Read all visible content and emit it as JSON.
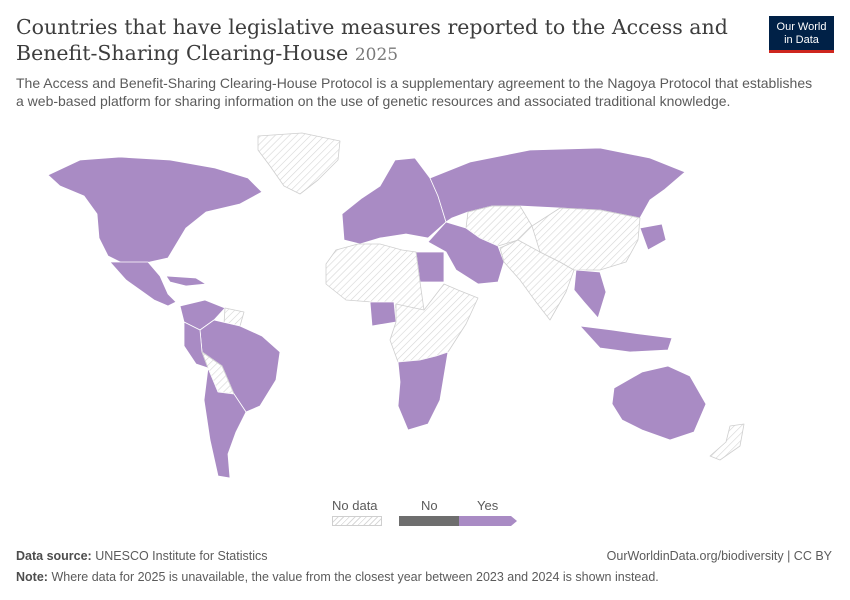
{
  "header": {
    "title": "Countries that have legislative measures reported to the Access and Benefit-Sharing Clearing-House",
    "year": "2025",
    "subtitle": "The Access and Benefit-Sharing Clearing-House Protocol is a supplementary agreement to the Nagoya Protocol that establishes a web-based platform for sharing information on the use of genetic resources and associated traditional knowledge."
  },
  "logo": {
    "line1": "Our World",
    "line2": "in Data"
  },
  "legend": {
    "items": [
      {
        "label": "No data"
      },
      {
        "label": "No",
        "color": "#6e6e6e"
      },
      {
        "label": "Yes",
        "color": "#a98bc4"
      }
    ]
  },
  "footer": {
    "source_label": "Data source:",
    "source": "UNESCO Institute for Statistics",
    "url": "OurWorldinData.org/biodiversity | CC BY",
    "note_label": "Note:",
    "note": "Where data for 2025 is unavailable, the value from the closest year between 2023 and 2024 is shown instead."
  },
  "map": {
    "colors": {
      "yes": "#a98bc4",
      "no": "#6e6e6e",
      "no_data": "hatched"
    },
    "regions": [
      {
        "name": "North America",
        "status": "Yes"
      },
      {
        "name": "Greenland",
        "status": "No data"
      },
      {
        "name": "Mexico and Central America",
        "status": "Yes"
      },
      {
        "name": "Caribbean",
        "status": "Yes"
      },
      {
        "name": "Colombia and Venezuela",
        "status": "Yes"
      },
      {
        "name": "Guianas",
        "status": "No data"
      },
      {
        "name": "Brazil",
        "status": "Yes"
      },
      {
        "name": "Peru",
        "status": "Yes"
      },
      {
        "name": "Bolivia",
        "status": "No data"
      },
      {
        "name": "Southern Cone",
        "status": "Yes"
      },
      {
        "name": "Europe",
        "status": "Yes"
      },
      {
        "name": "Russia",
        "status": "Yes"
      },
      {
        "name": "Central Asia",
        "status": "No data"
      },
      {
        "name": "Middle East",
        "status": "Yes"
      },
      {
        "name": "Egypt",
        "status": "Yes"
      },
      {
        "name": "North and West Africa",
        "status": "No data"
      },
      {
        "name": "Nigeria",
        "status": "Yes"
      },
      {
        "name": "Central and East Africa",
        "status": "No data"
      },
      {
        "name": "Southern Africa",
        "status": "Yes"
      },
      {
        "name": "South Asia",
        "status": "No data"
      },
      {
        "name": "China and Mongolia",
        "status": "No data"
      },
      {
        "name": "Japan and Korea",
        "status": "Yes"
      },
      {
        "name": "Southeast Asia",
        "status": "Yes"
      },
      {
        "name": "Indonesia",
        "status": "Yes"
      },
      {
        "name": "Australia",
        "status": "Yes"
      },
      {
        "name": "New Zealand",
        "status": "No data"
      }
    ]
  }
}
